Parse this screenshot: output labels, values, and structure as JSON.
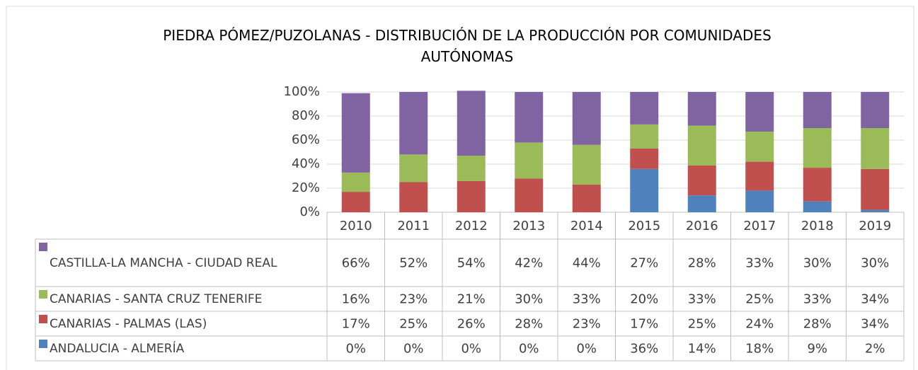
{
  "chart_data": {
    "type": "stacked_bar",
    "title": "PIEDRA PÓMEZ/PUZOLANAS - DISTRIBUCIÓN DE LA PRODUCCIÓN POR COMUNIDADES AUTÓNOMAS",
    "categories": [
      "2010",
      "2011",
      "2012",
      "2013",
      "2014",
      "2015",
      "2016",
      "2017",
      "2018",
      "2019"
    ],
    "series": [
      {
        "name": "CASTILLA-LA MANCHA - CIUDAD REAL",
        "color": "#8064a2",
        "values": [
          66,
          52,
          54,
          42,
          44,
          27,
          28,
          33,
          30,
          30
        ],
        "value_labels": [
          "66%",
          "52%",
          "54%",
          "42%",
          "44%",
          "27%",
          "28%",
          "33%",
          "30%",
          "30%"
        ]
      },
      {
        "name": "CANARIAS - SANTA CRUZ TENERIFE",
        "color": "#9bbb59",
        "values": [
          16,
          23,
          21,
          30,
          33,
          20,
          33,
          25,
          33,
          34
        ],
        "value_labels": [
          "16%",
          "23%",
          "21%",
          "30%",
          "33%",
          "20%",
          "33%",
          "25%",
          "33%",
          "34%"
        ]
      },
      {
        "name": "CANARIAS - PALMAS (LAS)",
        "color": "#c0504d",
        "values": [
          17,
          25,
          26,
          28,
          23,
          17,
          25,
          24,
          28,
          34
        ],
        "value_labels": [
          "17%",
          "25%",
          "26%",
          "28%",
          "23%",
          "17%",
          "25%",
          "24%",
          "28%",
          "34%"
        ]
      },
      {
        "name": "ANDALUCIA - ALMERÍA",
        "color": "#4f81bd",
        "values": [
          0,
          0,
          0,
          0,
          0,
          36,
          14,
          18,
          9,
          2
        ],
        "value_labels": [
          "0%",
          "0%",
          "0%",
          "0%",
          "0%",
          "36%",
          "14%",
          "18%",
          "9%",
          "2%"
        ]
      }
    ],
    "ylim": [
      0,
      100
    ],
    "yticks": [
      {
        "value": 0,
        "label": "0%"
      },
      {
        "value": 20,
        "label": "20%"
      },
      {
        "value": 40,
        "label": "40%"
      },
      {
        "value": 60,
        "label": "60%"
      },
      {
        "value": 80,
        "label": "80%"
      },
      {
        "value": 100,
        "label": "100%"
      }
    ],
    "grid": true
  }
}
